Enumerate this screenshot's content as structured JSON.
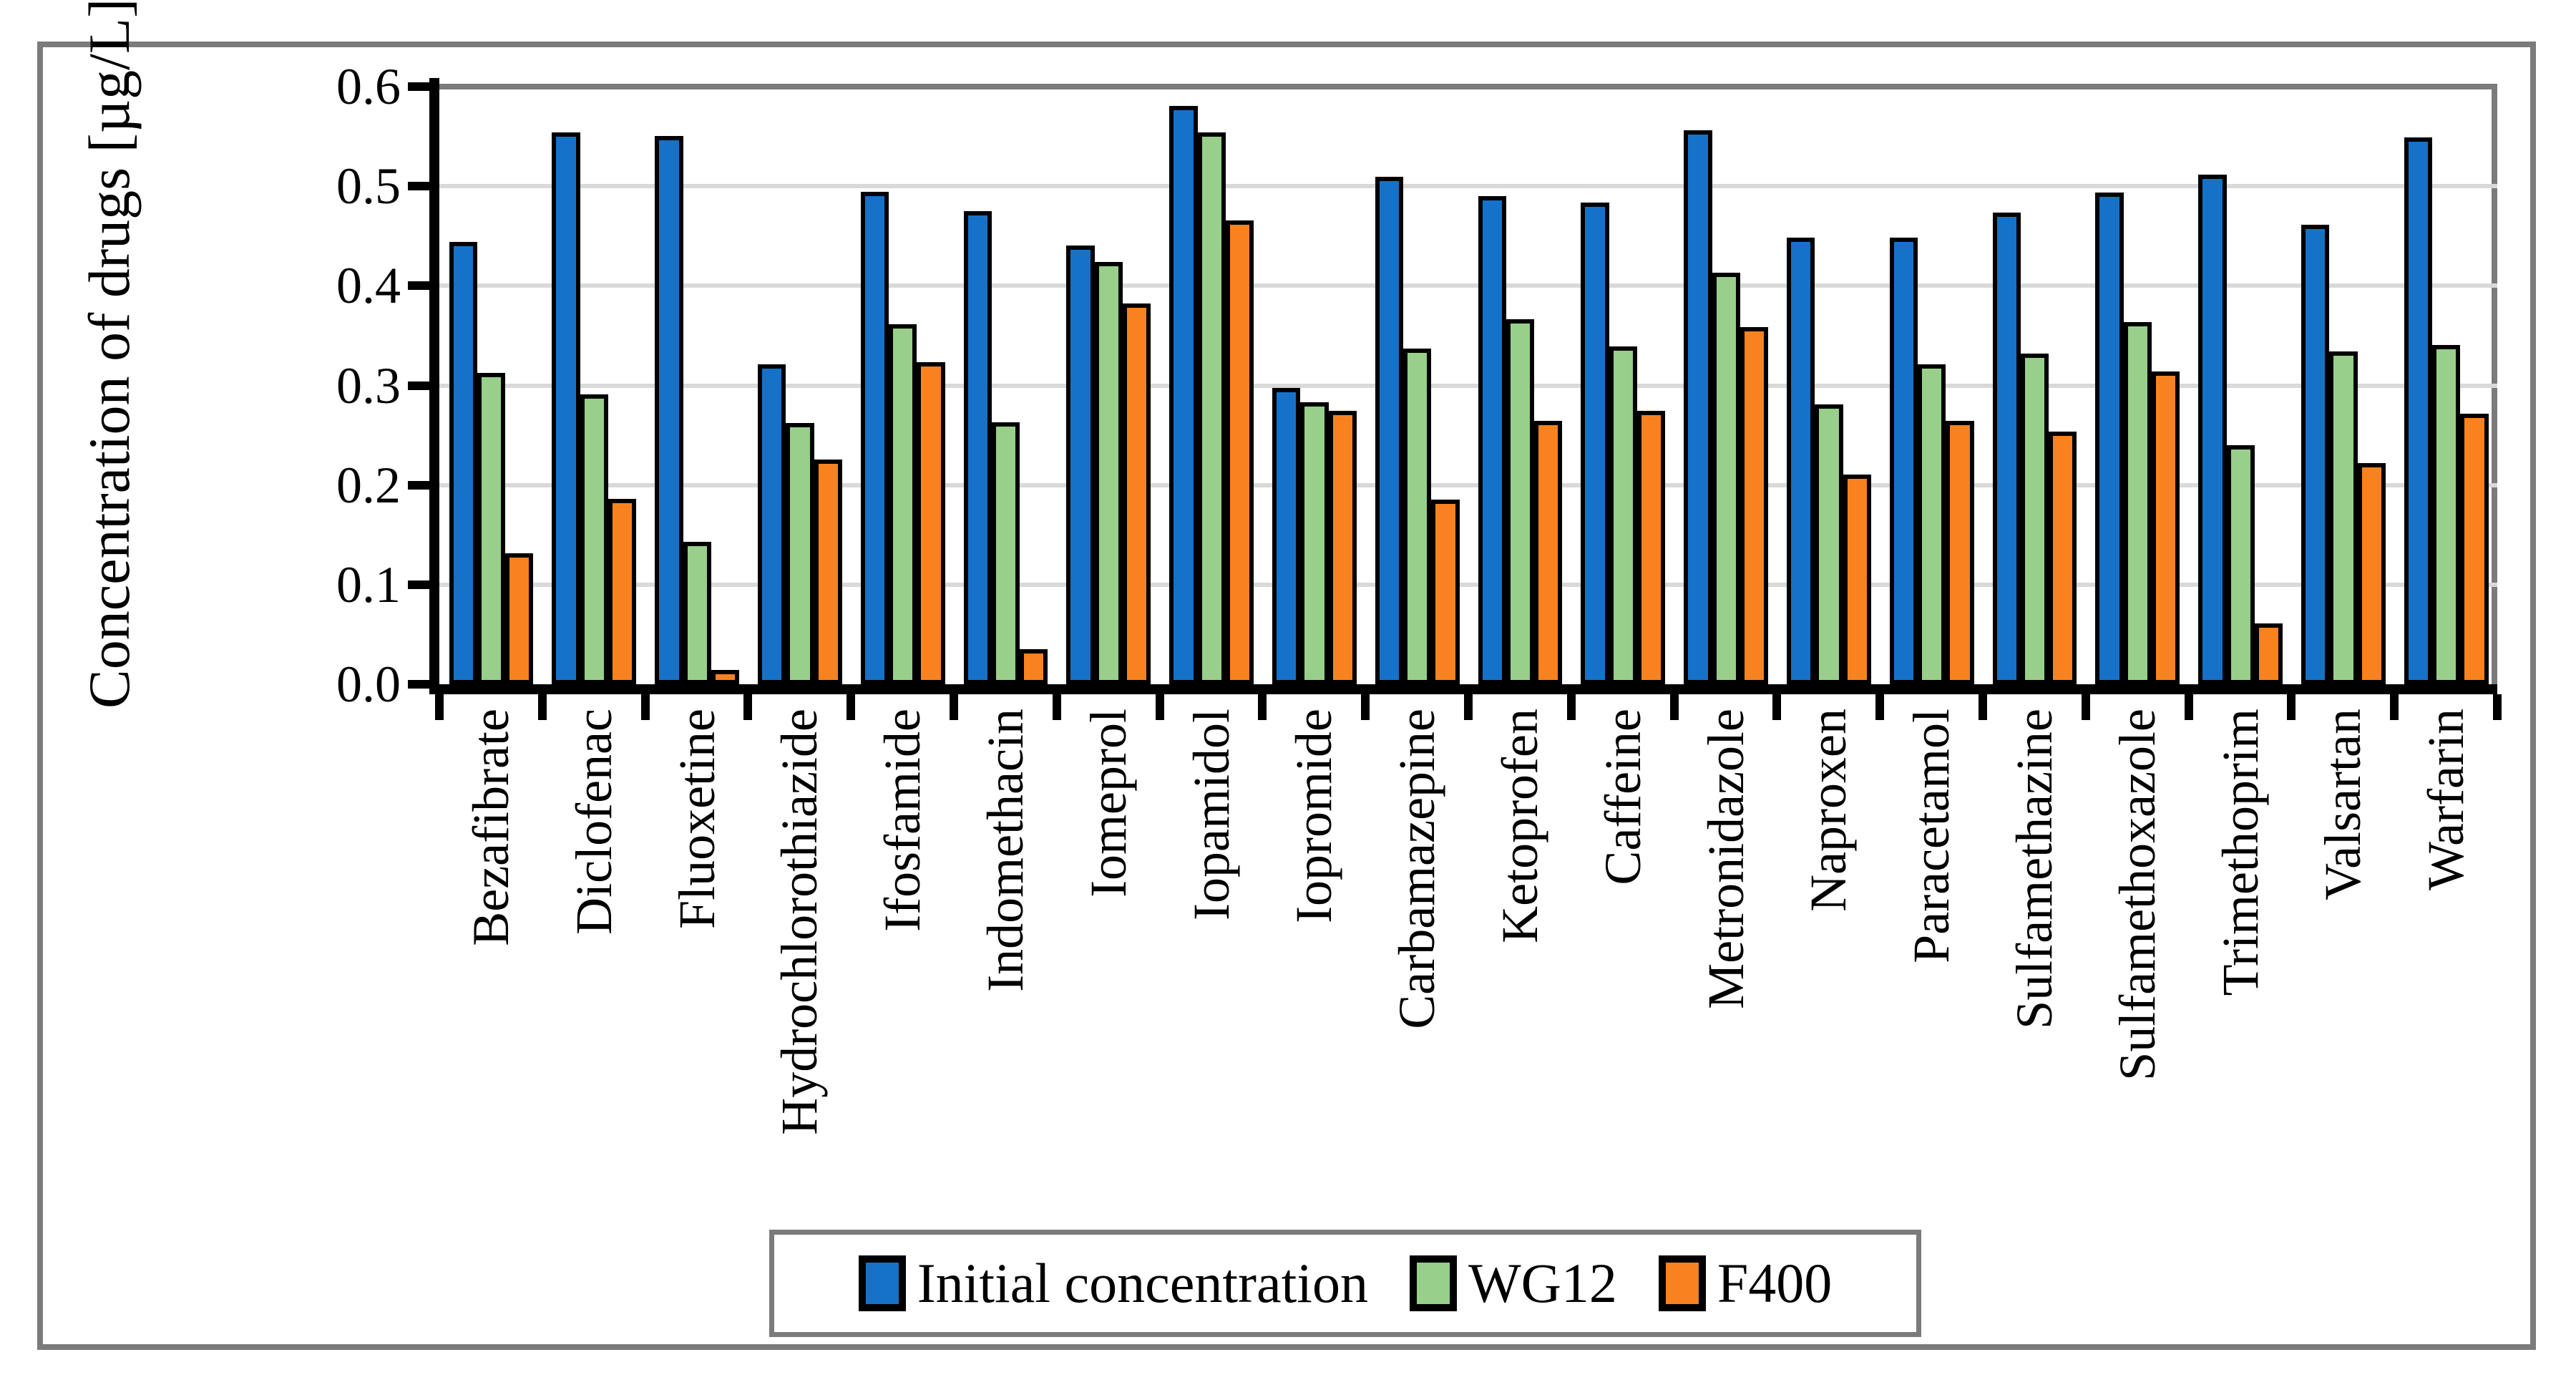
{
  "figure": {
    "background": "#FFFFFF",
    "frame_color": "#7B7B7B",
    "y_axis_title": "Concentration of drugs [µg/L]"
  },
  "chart_data": {
    "type": "bar",
    "title": "",
    "xlabel": "",
    "ylabel": "Concentration of drugs [µg/L]",
    "ylim": [
      0,
      0.6
    ],
    "ytick_labels": [
      "0.0",
      "0.1",
      "0.2",
      "0.3",
      "0.4",
      "0.5",
      "0.6"
    ],
    "grid": true,
    "gridline_color": "#D9D9D9",
    "bar_border_color": "#000000",
    "legend_position": "bottom",
    "categories": [
      "Bezafibrate",
      "Diclofenac",
      "Fluoxetine",
      "Hydrochlorothiazide",
      "Ifosfamide",
      "Indomethacin",
      "Iomeprol",
      "Iopamidol",
      "Iopromide",
      "Carbamazepine",
      "Ketoprofen",
      "Caffeine",
      "Metronidazole",
      "Naproxen",
      "Paracetamol",
      "Sulfamethazine",
      "Sulfamethoxazole",
      "Trimethoprim",
      "Valsartan",
      "Warfarin"
    ],
    "series": [
      {
        "name": "Initial concentration",
        "color": "#1672C8",
        "values": [
          0.44,
          0.55,
          0.546,
          0.317,
          0.49,
          0.471,
          0.436,
          0.576,
          0.293,
          0.505,
          0.486,
          0.479,
          0.552,
          0.444,
          0.444,
          0.469,
          0.489,
          0.507,
          0.457,
          0.545
        ]
      },
      {
        "name": "WG12",
        "color": "#98CF8B",
        "values": [
          0.308,
          0.287,
          0.139,
          0.258,
          0.357,
          0.259,
          0.42,
          0.55,
          0.279,
          0.333,
          0.362,
          0.335,
          0.409,
          0.277,
          0.317,
          0.328,
          0.359,
          0.236,
          0.33,
          0.336
        ]
      },
      {
        "name": "F400",
        "color": "#F8821F",
        "values": [
          0.127,
          0.182,
          0.01,
          0.221,
          0.319,
          0.031,
          0.378,
          0.461,
          0.27,
          0.181,
          0.26,
          0.27,
          0.354,
          0.206,
          0.26,
          0.249,
          0.31,
          0.057,
          0.218,
          0.267
        ]
      }
    ]
  }
}
